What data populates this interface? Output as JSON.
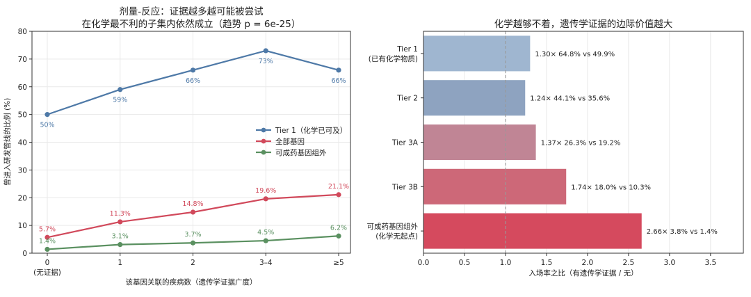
{
  "chart_data": [
    {
      "type": "line",
      "title": "剂量-反应：证据越多越可能被尝试",
      "subtitle": "在化学最不利的子集内依然成立（趋势 p = 6e-25）",
      "xlabel": "该基因关联的疾病数（遗传学证据广度）",
      "ylabel": "曾进入研发管线的比例 (%)",
      "categories": [
        "0",
        "1",
        "2",
        "3–4",
        "≥5"
      ],
      "category_sublabels": [
        "(无证据)",
        "",
        "",
        "",
        ""
      ],
      "ylim": [
        0,
        80
      ],
      "yticks": [
        0,
        10,
        20,
        30,
        40,
        50,
        60,
        70,
        80
      ],
      "grid": true,
      "legend_position": "center-right",
      "series": [
        {
          "name": "Tier 1（化学已可及）",
          "color": "#4e79a7",
          "values": [
            50,
            59,
            66,
            73,
            66
          ],
          "labels": [
            "50%",
            "59%",
            "66%",
            "73%",
            "66%"
          ],
          "label_pos": "below"
        },
        {
          "name": "全部基因",
          "color": "#d1495b",
          "values": [
            5.7,
            11.3,
            14.8,
            19.6,
            21.1
          ],
          "labels": [
            "5.7%",
            "11.3%",
            "14.8%",
            "19.6%",
            "21.1%"
          ],
          "label_pos": "above"
        },
        {
          "name": "可成药基因组外",
          "color": "#5a9060",
          "values": [
            1.4,
            3.1,
            3.7,
            4.5,
            6.2
          ],
          "labels": [
            "1.4%",
            "3.1%",
            "3.7%",
            "4.5%",
            "6.2%"
          ],
          "label_pos": "above"
        }
      ]
    },
    {
      "type": "bar",
      "orientation": "horizontal",
      "title": "化学越够不着，遗传学证据的边际价值越大",
      "xlabel": "入场率之比（有遗传学证据 / 无）",
      "xlim": [
        0,
        3.9
      ],
      "xticks": [
        0.0,
        0.5,
        1.0,
        1.5,
        2.0,
        2.5,
        3.0,
        3.5
      ],
      "xtick_labels": [
        "0.0",
        "0.5",
        "1.0",
        "1.5",
        "2.0",
        "2.5",
        "3.0",
        "3.5"
      ],
      "reference_line": 1.0,
      "grid": true,
      "categories": [
        {
          "line1": "Tier 1",
          "line2": "(已有化学物质)"
        },
        {
          "line1": "Tier 2",
          "line2": ""
        },
        {
          "line1": "Tier 3A",
          "line2": ""
        },
        {
          "line1": "Tier 3B",
          "line2": ""
        },
        {
          "line1": "可成药基因组外",
          "line2": "(化学无起点)"
        }
      ],
      "values": [
        1.3,
        1.24,
        1.37,
        1.74,
        2.66
      ],
      "bar_labels": [
        "1.30×  64.8% vs 49.9%",
        "1.24×  44.1% vs 35.6%",
        "1.37×  26.3% vs 19.2%",
        "1.74×  18.0% vs 10.3%",
        "2.66×  3.8% vs 1.4%"
      ],
      "colors": [
        "#9fb6d0",
        "#8ea3c0",
        "#c08595",
        "#cd6878",
        "#d54a5e"
      ]
    }
  ]
}
